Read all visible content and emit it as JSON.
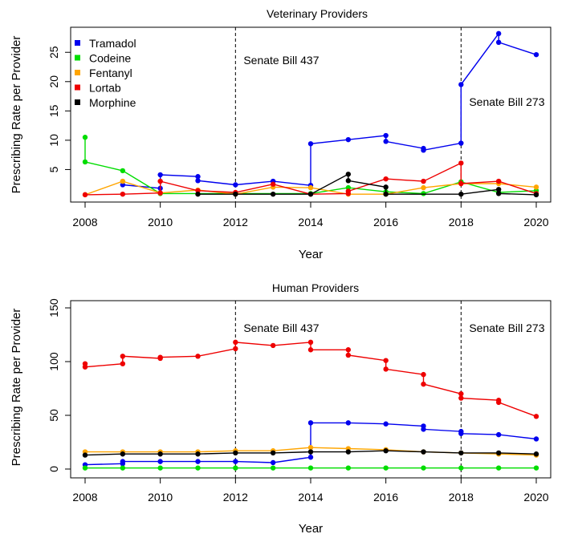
{
  "chart_data": [
    {
      "type": "line",
      "title": "Veterinary Providers",
      "xlabel": "Year",
      "ylabel": "Prescribing Rate per Provider",
      "xlim": [
        2008,
        2020
      ],
      "ylim": [
        0,
        29
      ],
      "xticks": [
        2008,
        2010,
        2012,
        2014,
        2016,
        2018,
        2020
      ],
      "yticks": [
        5,
        10,
        15,
        20,
        25
      ],
      "legend": "top-left",
      "annotations": [
        {
          "x": 2012,
          "text": "Senate Bill 437"
        },
        {
          "x": 2018,
          "text": "Senate Bill 273"
        }
      ],
      "series": [
        {
          "name": "Tramadol",
          "color": "#0000ee",
          "points": [
            [
              2009,
              2.4
            ],
            [
              2010,
              1.8
            ],
            [
              2010,
              4.1
            ],
            [
              2011,
              3.8
            ],
            [
              2011,
              3.1
            ],
            [
              2012,
              2.4
            ],
            [
              2013,
              3.0
            ],
            [
              2014,
              2.3
            ],
            [
              2014,
              9.4
            ],
            [
              2015,
              10.1
            ],
            [
              2016,
              10.8
            ],
            [
              2016,
              9.8
            ],
            [
              2017,
              8.6
            ],
            [
              2017,
              8.3
            ],
            [
              2018,
              9.5
            ],
            [
              2018,
              19.5
            ],
            [
              2019,
              28.2
            ],
            [
              2019,
              26.7
            ],
            [
              2020,
              24.6
            ]
          ]
        },
        {
          "name": "Codeine",
          "color": "#00dd00",
          "points": [
            [
              2008,
              10.5
            ],
            [
              2008,
              6.3
            ],
            [
              2009,
              4.8
            ],
            [
              2010,
              0.9
            ],
            [
              2012,
              0.9
            ],
            [
              2014,
              0.9
            ],
            [
              2015,
              1.9
            ],
            [
              2016,
              1.2
            ],
            [
              2017,
              0.9
            ],
            [
              2018,
              2.9
            ],
            [
              2019,
              1.1
            ],
            [
              2020,
              1.4
            ]
          ]
        },
        {
          "name": "Fentanyl",
          "color": "#ffa500",
          "points": [
            [
              2008,
              0.7
            ],
            [
              2009,
              3.0
            ],
            [
              2010,
              1.0
            ],
            [
              2011,
              1.5
            ],
            [
              2012,
              0.8
            ],
            [
              2013,
              2.0
            ],
            [
              2014,
              1.9
            ],
            [
              2015,
              0.8
            ],
            [
              2016,
              0.8
            ],
            [
              2017,
              1.9
            ],
            [
              2018,
              2.6
            ],
            [
              2019,
              2.6
            ],
            [
              2020,
              2.0
            ]
          ]
        },
        {
          "name": "Lortab",
          "color": "#ee0000",
          "points": [
            [
              2008,
              0.7
            ],
            [
              2009,
              0.8
            ],
            [
              2010,
              1.0
            ],
            [
              2010,
              3.0
            ],
            [
              2011,
              1.4
            ],
            [
              2012,
              1.1
            ],
            [
              2013,
              2.5
            ],
            [
              2014,
              0.8
            ],
            [
              2015,
              0.9
            ],
            [
              2015,
              1.3
            ],
            [
              2016,
              3.4
            ],
            [
              2017,
              3.0
            ],
            [
              2018,
              6.1
            ],
            [
              2018,
              2.6
            ],
            [
              2019,
              3.0
            ],
            [
              2020,
              0.9
            ]
          ]
        },
        {
          "name": "Morphine",
          "color": "#000000",
          "points": [
            [
              2011,
              0.8
            ],
            [
              2012,
              0.8
            ],
            [
              2013,
              0.8
            ],
            [
              2014,
              0.8
            ],
            [
              2015,
              4.2
            ],
            [
              2015,
              3.1
            ],
            [
              2016,
              2.0
            ],
            [
              2016,
              0.8
            ],
            [
              2018,
              0.8
            ],
            [
              2019,
              1.6
            ],
            [
              2019,
              0.9
            ],
            [
              2020,
              0.7
            ]
          ]
        }
      ]
    },
    {
      "type": "line",
      "title": "Human Providers",
      "xlabel": "Year",
      "ylabel": "Prescribing Rate per Provider",
      "xlim": [
        2008,
        2020
      ],
      "ylim": [
        0,
        150
      ],
      "xticks": [
        2008,
        2010,
        2012,
        2014,
        2016,
        2018,
        2020
      ],
      "yticks": [
        0,
        50,
        100,
        150
      ],
      "annotations": [
        {
          "x": 2012,
          "text": "Senate Bill 437"
        },
        {
          "x": 2018,
          "text": "Senate Bill 273"
        }
      ],
      "series": [
        {
          "name": "Lortab",
          "color": "#ee0000",
          "points": [
            [
              2008,
              98
            ],
            [
              2008,
              95
            ],
            [
              2009,
              98
            ],
            [
              2009,
              105
            ],
            [
              2010,
              103
            ],
            [
              2010,
              104
            ],
            [
              2011,
              105
            ],
            [
              2012,
              112
            ],
            [
              2012,
              118
            ],
            [
              2013,
              115
            ],
            [
              2014,
              118
            ],
            [
              2014,
              111
            ],
            [
              2015,
              111
            ],
            [
              2015,
              106
            ],
            [
              2016,
              101
            ],
            [
              2016,
              93
            ],
            [
              2017,
              88
            ],
            [
              2017,
              79
            ],
            [
              2018,
              70
            ],
            [
              2018,
              66
            ],
            [
              2019,
              64
            ],
            [
              2019,
              62
            ],
            [
              2020,
              49
            ]
          ]
        },
        {
          "name": "Tramadol",
          "color": "#0000ee",
          "points": [
            [
              2008,
              4
            ],
            [
              2009,
              5
            ],
            [
              2009,
              7
            ],
            [
              2010,
              7
            ],
            [
              2011,
              7
            ],
            [
              2012,
              7
            ],
            [
              2013,
              6
            ],
            [
              2014,
              11
            ],
            [
              2014,
              43
            ],
            [
              2015,
              43
            ],
            [
              2016,
              42
            ],
            [
              2017,
              40
            ],
            [
              2017,
              37
            ],
            [
              2018,
              35
            ],
            [
              2018,
              33
            ],
            [
              2019,
              32
            ],
            [
              2020,
              28
            ]
          ]
        },
        {
          "name": "Fentanyl",
          "color": "#ffa500",
          "points": [
            [
              2008,
              16
            ],
            [
              2009,
              16
            ],
            [
              2010,
              16
            ],
            [
              2011,
              16
            ],
            [
              2012,
              17
            ],
            [
              2013,
              17
            ],
            [
              2014,
              20
            ],
            [
              2015,
              19
            ],
            [
              2016,
              18
            ],
            [
              2017,
              16
            ],
            [
              2018,
              15
            ],
            [
              2019,
              14
            ],
            [
              2020,
              13
            ]
          ]
        },
        {
          "name": "Morphine",
          "color": "#000000",
          "points": [
            [
              2008,
              13
            ],
            [
              2009,
              14
            ],
            [
              2010,
              14
            ],
            [
              2011,
              14
            ],
            [
              2012,
              15
            ],
            [
              2013,
              15
            ],
            [
              2014,
              16
            ],
            [
              2015,
              16
            ],
            [
              2016,
              17
            ],
            [
              2017,
              16
            ],
            [
              2018,
              15
            ],
            [
              2019,
              15
            ],
            [
              2020,
              14
            ]
          ]
        },
        {
          "name": "Codeine",
          "color": "#00dd00",
          "points": [
            [
              2008,
              1
            ],
            [
              2009,
              1
            ],
            [
              2010,
              1
            ],
            [
              2011,
              1
            ],
            [
              2012,
              1
            ],
            [
              2013,
              1
            ],
            [
              2014,
              1
            ],
            [
              2015,
              1
            ],
            [
              2016,
              1
            ],
            [
              2017,
              1
            ],
            [
              2018,
              1
            ],
            [
              2019,
              1
            ],
            [
              2020,
              1
            ]
          ]
        }
      ]
    }
  ]
}
